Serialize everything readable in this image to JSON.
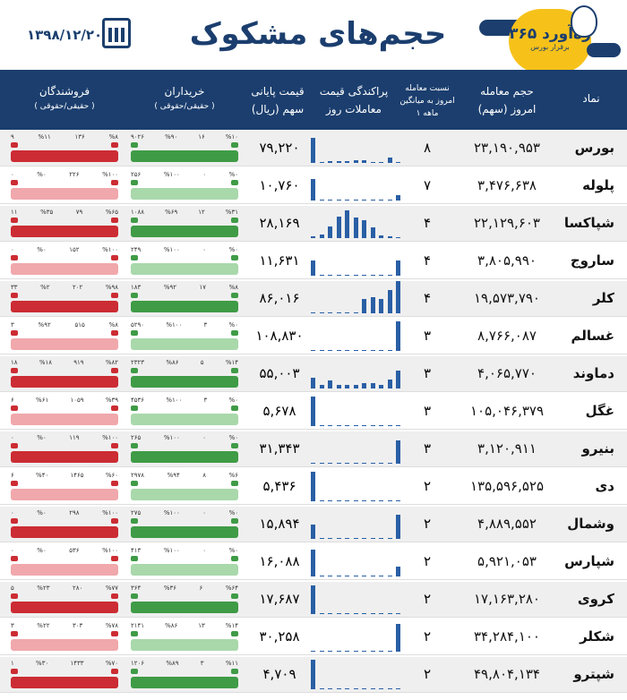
{
  "header": {
    "date": "۱۳۹۸/۱۲/۲۰",
    "title": "حجم‌های مشکوک",
    "brand": "۳۶۵ ره‌آورد",
    "brand_sub": "برقرار بورس"
  },
  "columns": {
    "symbol": "نماد",
    "volume": "حجم معامله",
    "volume_sub": "امروز (سهم)",
    "ratio": "نسبت معامله",
    "ratio_sub": "امروز به میانگین",
    "ratio_sub2": "۱ ماهه",
    "dispersion": "پراکندگی قیمت",
    "dispersion_sub": "معاملات روز",
    "price": "قیمت پایانی",
    "price_sub": "سهم (ریال)",
    "buyers": "خریداران",
    "buyers_sub": "( حقیقی/حقوقی )",
    "sellers": "فروشندگان",
    "sellers_sub": "( حقیقی/حقوقی )"
  },
  "rows": [
    {
      "symbol": "بورس",
      "volume": "۲۳,۱۹۰,۹۵۳",
      "ratio": "۸",
      "price": "۷۹,۲۲۰",
      "bars": [
        28,
        1,
        2,
        2,
        2,
        3,
        3,
        0,
        0,
        6,
        1
      ],
      "b1": "%۱۰",
      "b2": "۱۶",
      "b3": "%۹۰",
      "b4": "۹۰۲۶",
      "s1": "%۸",
      "s2": "۱۳۶",
      "s3": "%۱۱",
      "s4": "۹"
    },
    {
      "symbol": "پلوله",
      "volume": "۳,۴۷۶,۶۳۸",
      "ratio": "۷",
      "price": "۱۰,۷۶۰",
      "bars": [
        24,
        1,
        1,
        1,
        1,
        1,
        1,
        1,
        1,
        1,
        6
      ],
      "b1": "%۰",
      "b2": "۰",
      "b3": "%۱۰۰",
      "b4": "۲۵۶",
      "s1": "%۱۰۰",
      "s2": "۲۲۶",
      "s3": "%۰",
      "s4": "۰"
    },
    {
      "symbol": "شپاکسا",
      "volume": "۲۲,۱۲۹,۶۰۳",
      "ratio": "۴",
      "price": "۲۸,۱۶۹",
      "bars": [
        2,
        4,
        13,
        24,
        31,
        23,
        20,
        12,
        3,
        2,
        0
      ],
      "b1": "%۳۱",
      "b2": "۱۲",
      "b3": "%۶۹",
      "b4": "۱۰۸۸",
      "s1": "%۶۵",
      "s2": "۷۹",
      "s3": "%۳۵",
      "s4": "۱۱"
    },
    {
      "symbol": "ساروج",
      "volume": "۳,۸۰۵,۹۹۰",
      "ratio": "۴",
      "price": "۱۱,۶۳۱",
      "bars": [
        17,
        1,
        1,
        1,
        1,
        1,
        1,
        1,
        1,
        1,
        17
      ],
      "b1": "%۰",
      "b2": "۰",
      "b3": "%۱۰۰",
      "b4": "۲۴۹",
      "s1": "%۱۰۰",
      "s2": "۱۵۲",
      "s3": "%۰",
      "s4": "۰"
    },
    {
      "symbol": "کلر",
      "volume": "۱۹,۵۷۳,۷۹۰",
      "ratio": "۴",
      "price": "۸۶,۰۱۶",
      "bars": [
        1,
        1,
        1,
        1,
        1,
        1,
        16,
        18,
        16,
        26,
        36
      ],
      "b1": "%۸",
      "b2": "۱۷",
      "b3": "%۹۲",
      "b4": "۱۸۳",
      "s1": "%۹۸",
      "s2": "۲۰۲",
      "s3": "%۲",
      "s4": "۳۳"
    },
    {
      "symbol": "غسالم",
      "volume": "۸,۷۶۶,۰۸۷",
      "ratio": "۳",
      "price": "۱۰۸,۸۳۰",
      "bars": [
        1,
        1,
        1,
        1,
        1,
        1,
        1,
        1,
        1,
        1,
        33
      ],
      "b1": "%۰",
      "b2": "۳",
      "b3": "%۱۰۰",
      "b4": "۵۲۹۰",
      "s1": "%۸",
      "s2": "۵۱۵",
      "s3": "%۹۲",
      "s4": "۳"
    },
    {
      "symbol": "دماوند",
      "volume": "۴,۰۶۵,۷۷۰",
      "ratio": "۳",
      "price": "۵۵,۰۰۳",
      "bars": [
        12,
        4,
        9,
        4,
        4,
        4,
        6,
        6,
        4,
        10,
        20
      ],
      "b1": "%۱۴",
      "b2": "۵",
      "b3": "%۸۶",
      "b4": "۲۳۲۳",
      "s1": "%۸۲",
      "s2": "۹۱۹",
      "s3": "%۱۸",
      "s4": "۱۸"
    },
    {
      "symbol": "غگل",
      "volume": "۱۰۵,۰۴۶,۳۷۹",
      "ratio": "۳",
      "price": "۵,۶۷۸",
      "bars": [
        33,
        0,
        0,
        0,
        0,
        0,
        0,
        0,
        0,
        0,
        0
      ],
      "b1": "%۰",
      "b2": "۳",
      "b3": "%۱۰۰",
      "b4": "۴۵۳۶",
      "s1": "%۳۹",
      "s2": "۱۰۵۹",
      "s3": "%۶۱",
      "s4": "۶"
    },
    {
      "symbol": "بنیرو",
      "volume": "۳,۱۲۰,۹۱۱",
      "ratio": "۳",
      "price": "۳۱,۳۴۳",
      "bars": [
        1,
        0,
        0,
        0,
        0,
        0,
        0,
        0,
        0,
        0,
        26
      ],
      "b1": "%۰",
      "b2": "۰",
      "b3": "%۱۰۰",
      "b4": "۲۶۵",
      "s1": "%۱۰۰",
      "s2": "۱۱۹",
      "s3": "%۰",
      "s4": "۰"
    },
    {
      "symbol": "دی",
      "volume": "۱۳۵,۵۹۶,۵۲۵",
      "ratio": "۲",
      "price": "۵,۴۳۶",
      "bars": [
        33,
        0,
        0,
        0,
        0,
        0,
        0,
        0,
        0,
        0,
        0
      ],
      "b1": "%۶",
      "b2": "۸",
      "b3": "%۹۴",
      "b4": "۲۹۷۸",
      "s1": "%۶۰",
      "s2": "۱۴۶۵",
      "s3": "%۴۰",
      "s4": "۶"
    },
    {
      "symbol": "وشمال",
      "volume": "۴,۸۸۹,۵۵۲",
      "ratio": "۲",
      "price": "۱۵,۸۹۴",
      "bars": [
        16,
        1,
        1,
        1,
        1,
        1,
        1,
        1,
        1,
        1,
        27
      ],
      "b1": "%۰",
      "b2": "۰",
      "b3": "%۱۰۰",
      "b4": "۲۷۵",
      "s1": "%۱۰۰",
      "s2": "۲۹۸",
      "s3": "%۰",
      "s4": "۰"
    },
    {
      "symbol": "شپارس",
      "volume": "۵,۹۲۱,۰۵۳",
      "ratio": "۲",
      "price": "۱۶,۰۸۸",
      "bars": [
        30,
        1,
        1,
        1,
        1,
        1,
        1,
        1,
        1,
        1,
        11
      ],
      "b1": "%۰",
      "b2": "۰",
      "b3": "%۱۰۰",
      "b4": "۴۱۳",
      "s1": "%۱۰۰",
      "s2": "۵۳۶",
      "s3": "%۰",
      "s4": "۰"
    },
    {
      "symbol": "کروی",
      "volume": "۱۷,۱۶۳,۲۸۰",
      "ratio": "۲",
      "price": "۱۷,۶۸۷",
      "bars": [
        32,
        0,
        0,
        0,
        0,
        0,
        0,
        0,
        0,
        0,
        0
      ],
      "b1": "%۶۴",
      "b2": "۶",
      "b3": "%۳۶",
      "b4": "۳۶۴",
      "s1": "%۷۷",
      "s2": "۲۸۰",
      "s3": "%۲۳",
      "s4": "۵"
    },
    {
      "symbol": "شکلر",
      "volume": "۳۴,۲۸۴,۱۰۰",
      "ratio": "۲",
      "price": "۳۰,۲۵۸",
      "bars": [
        0,
        0,
        0,
        0,
        0,
        0,
        0,
        0,
        0,
        0,
        31
      ],
      "b1": "%۱۴",
      "b2": "۱۳",
      "b3": "%۸۶",
      "b4": "۲۱۴۱",
      "s1": "%۷۸",
      "s2": "۳۰۳",
      "s3": "%۲۲",
      "s4": "۳"
    },
    {
      "symbol": "شپترو",
      "volume": "۴۹,۸۰۴,۱۳۴",
      "ratio": "۲",
      "price": "۴,۷۰۹",
      "bars": [
        33,
        0,
        0,
        0,
        0,
        0,
        0,
        0,
        0,
        0,
        0
      ],
      "b1": "%۱۱",
      "b2": "۳",
      "b3": "%۸۹",
      "b4": "۱۲۰۶",
      "s1": "%۷۰",
      "s2": "۱۴۳۳",
      "s3": "%۳۰",
      "s4": "۱"
    }
  ]
}
